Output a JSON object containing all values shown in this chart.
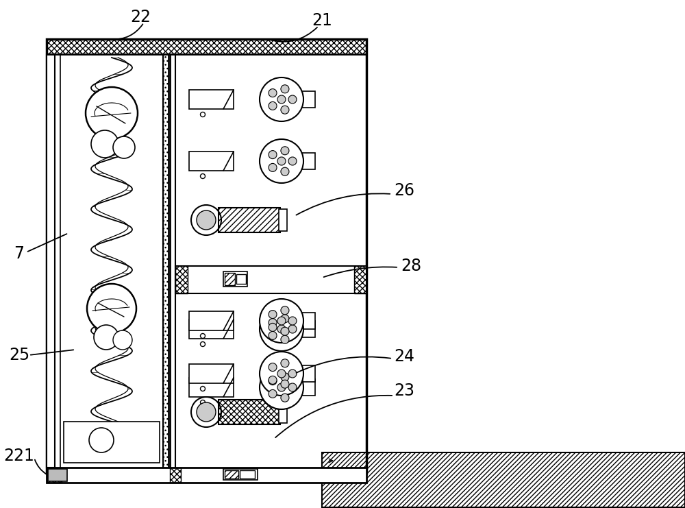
{
  "bg_color": "#ffffff",
  "figsize": [
    10.0,
    7.41
  ],
  "dpi": 100,
  "labels": [
    "21",
    "22",
    "7",
    "25",
    "221",
    "26",
    "28",
    "24",
    "23"
  ]
}
